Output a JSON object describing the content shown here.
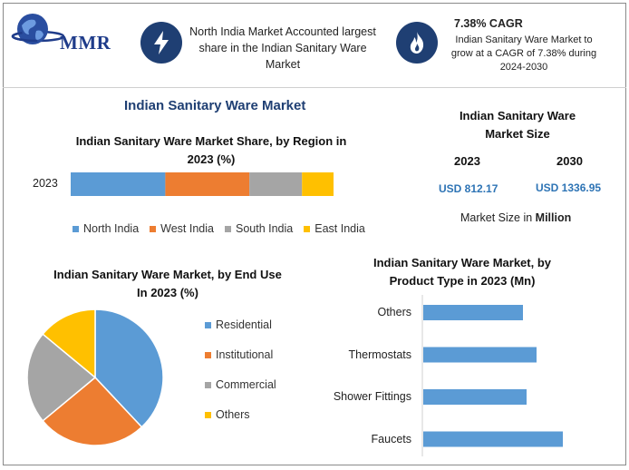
{
  "logo": {
    "text": "MMR"
  },
  "header": {
    "left_text": "North India Market Accounted largest share in the Indian Sanitary Ware Market",
    "cagr_title": "7.38% CAGR",
    "cagr_text": "Indian Sanitary Ware Market to grow at a CAGR of 7.38% during 2024-2030"
  },
  "main_title": "Indian Sanitary Ware Market",
  "market_size": {
    "title": "Indian Sanitary Ware Market Size",
    "year_a": "2023",
    "year_b": "2030",
    "value_a": "USD 812.17",
    "value_b": "USD 1336.95",
    "note_prefix": "Market Size in ",
    "note_unit": "Million"
  },
  "colors": {
    "blue": "#5b9bd5",
    "orange": "#ed7d31",
    "gray": "#a5a5a5",
    "yellow": "#ffc000",
    "navy": "#1f3f73"
  },
  "chart_data": [
    {
      "type": "bar",
      "orientation": "horizontal-stacked",
      "title": "Indian Sanitary Ware Market Share, by Region in 2023 (%)",
      "categories": [
        "2023"
      ],
      "series": [
        {
          "name": "North India",
          "values": [
            36
          ]
        },
        {
          "name": "West India",
          "values": [
            32
          ]
        },
        {
          "name": "South India",
          "values": [
            20
          ]
        },
        {
          "name": "East India",
          "values": [
            12
          ]
        }
      ],
      "legend": "bottom"
    },
    {
      "type": "pie",
      "title": "Indian Sanitary Ware Market, by End Use In 2023 (%)",
      "labels": [
        "Residential",
        "Institutional",
        "Commercial",
        "Others"
      ],
      "values": [
        38,
        26,
        22,
        14
      ],
      "legend": "right"
    },
    {
      "type": "bar",
      "orientation": "horizontal",
      "title": "Indian Sanitary Ware Market, by Product Type in 2023 (Mn)",
      "categories": [
        "Others",
        "Thermostats",
        "Shower Fittings",
        "Faucets"
      ],
      "values": [
        110,
        125,
        114,
        154
      ]
    }
  ]
}
